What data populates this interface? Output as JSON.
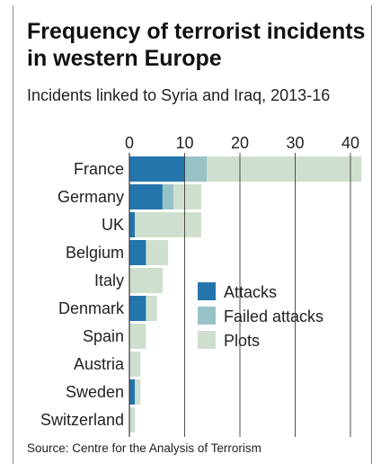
{
  "header": {
    "title": "Frequency of terrorist incidents in western Europe",
    "subtitle": "Incidents linked to Syria and Iraq, 2013-16"
  },
  "source": "Source: Centre for the Analysis of Terrorism",
  "colors": {
    "attacks": "#2375ab",
    "failed": "#98c3c6",
    "plots": "#cfdfcf",
    "grid": "#3a3a3a"
  },
  "chart_data": {
    "type": "bar",
    "orientation": "horizontal",
    "stacked": true,
    "title": "Frequency of terrorist incidents in western Europe",
    "subtitle": "Incidents linked to Syria and Iraq, 2013-16",
    "categories": [
      "France",
      "Germany",
      "UK",
      "Belgium",
      "Italy",
      "Denmark",
      "Spain",
      "Austria",
      "Sweden",
      "Switzerland"
    ],
    "series": [
      {
        "name": "Attacks",
        "values": [
          10,
          6,
          1,
          3,
          0,
          3,
          0,
          0,
          1,
          0
        ]
      },
      {
        "name": "Failed attacks",
        "values": [
          4,
          2,
          0,
          0,
          0,
          0,
          0,
          0,
          0,
          0
        ]
      },
      {
        "name": "Plots",
        "values": [
          28,
          5,
          12,
          4,
          6,
          2,
          3,
          2,
          1,
          1
        ]
      }
    ],
    "xticks": [
      0,
      10,
      20,
      30,
      40
    ],
    "xlim": [
      0,
      42
    ],
    "grid": true,
    "legend": "center-right"
  }
}
